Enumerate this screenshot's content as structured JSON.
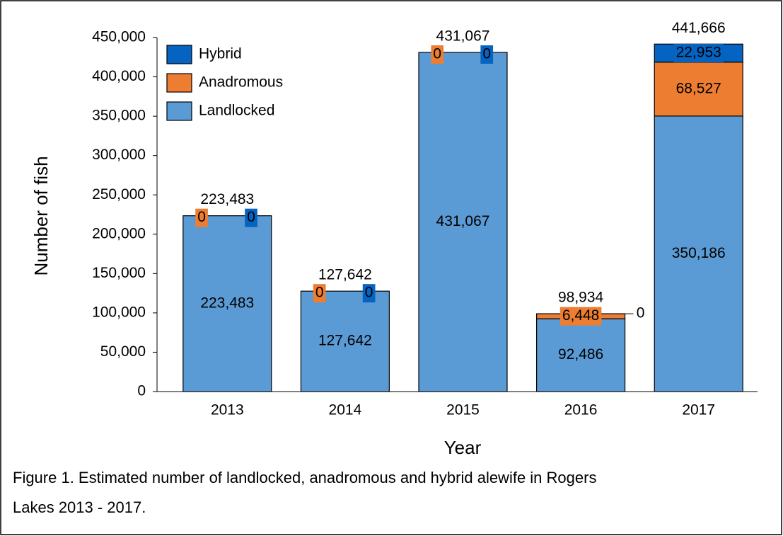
{
  "chart_data": {
    "type": "stacked_bar",
    "y_label": "Number of fish",
    "x_label": "Year",
    "caption": [
      "Figure 1. Estimated number of landlocked, anadromous and hybrid alewife in Rogers",
      "Lakes 2013 - 2017."
    ],
    "categories": [
      "2013",
      "2014",
      "2015",
      "2016",
      "2017"
    ],
    "series": [
      {
        "name": "Landlocked",
        "color": "#5b9bd5",
        "values": [
          223483,
          127642,
          431067,
          92486,
          350186
        ],
        "value_labels": [
          "223,483",
          "127,642",
          "431,067",
          "92,486",
          "350,186"
        ]
      },
      {
        "name": "Anadromous",
        "color": "#ed7d31",
        "values": [
          0,
          0,
          0,
          6448,
          68527
        ],
        "value_labels": [
          "0",
          "0",
          "0",
          "6,448",
          "68,527"
        ]
      },
      {
        "name": "Hybrid",
        "color": "#0563c1",
        "values": [
          0,
          0,
          0,
          0,
          22953
        ],
        "value_labels": [
          "0",
          "0",
          "0",
          "0",
          "22,953"
        ]
      }
    ],
    "totals": {
      "values": [
        223483,
        127642,
        431067,
        98934,
        441666
      ],
      "value_labels": [
        "223,483",
        "127,642",
        "431,067",
        "98,934",
        "441,666"
      ]
    },
    "ylim": [
      0,
      450000
    ],
    "yticks": [
      0,
      {
        "value": 50000,
        "label": "50,000"
      },
      {
        "value": 100000,
        "label": "100,000"
      },
      {
        "value": 150000,
        "label": "150,000"
      },
      {
        "value": 200000,
        "label": "200,000"
      },
      {
        "value": 250000,
        "label": "250,000"
      },
      {
        "value": 300000,
        "label": "300,000"
      },
      {
        "value": 350000,
        "label": "350,000"
      },
      {
        "value": 400000,
        "label": "400,000"
      },
      {
        "value": 450000,
        "label": "450,000"
      }
    ],
    "legend": "top-left",
    "grid": false
  }
}
